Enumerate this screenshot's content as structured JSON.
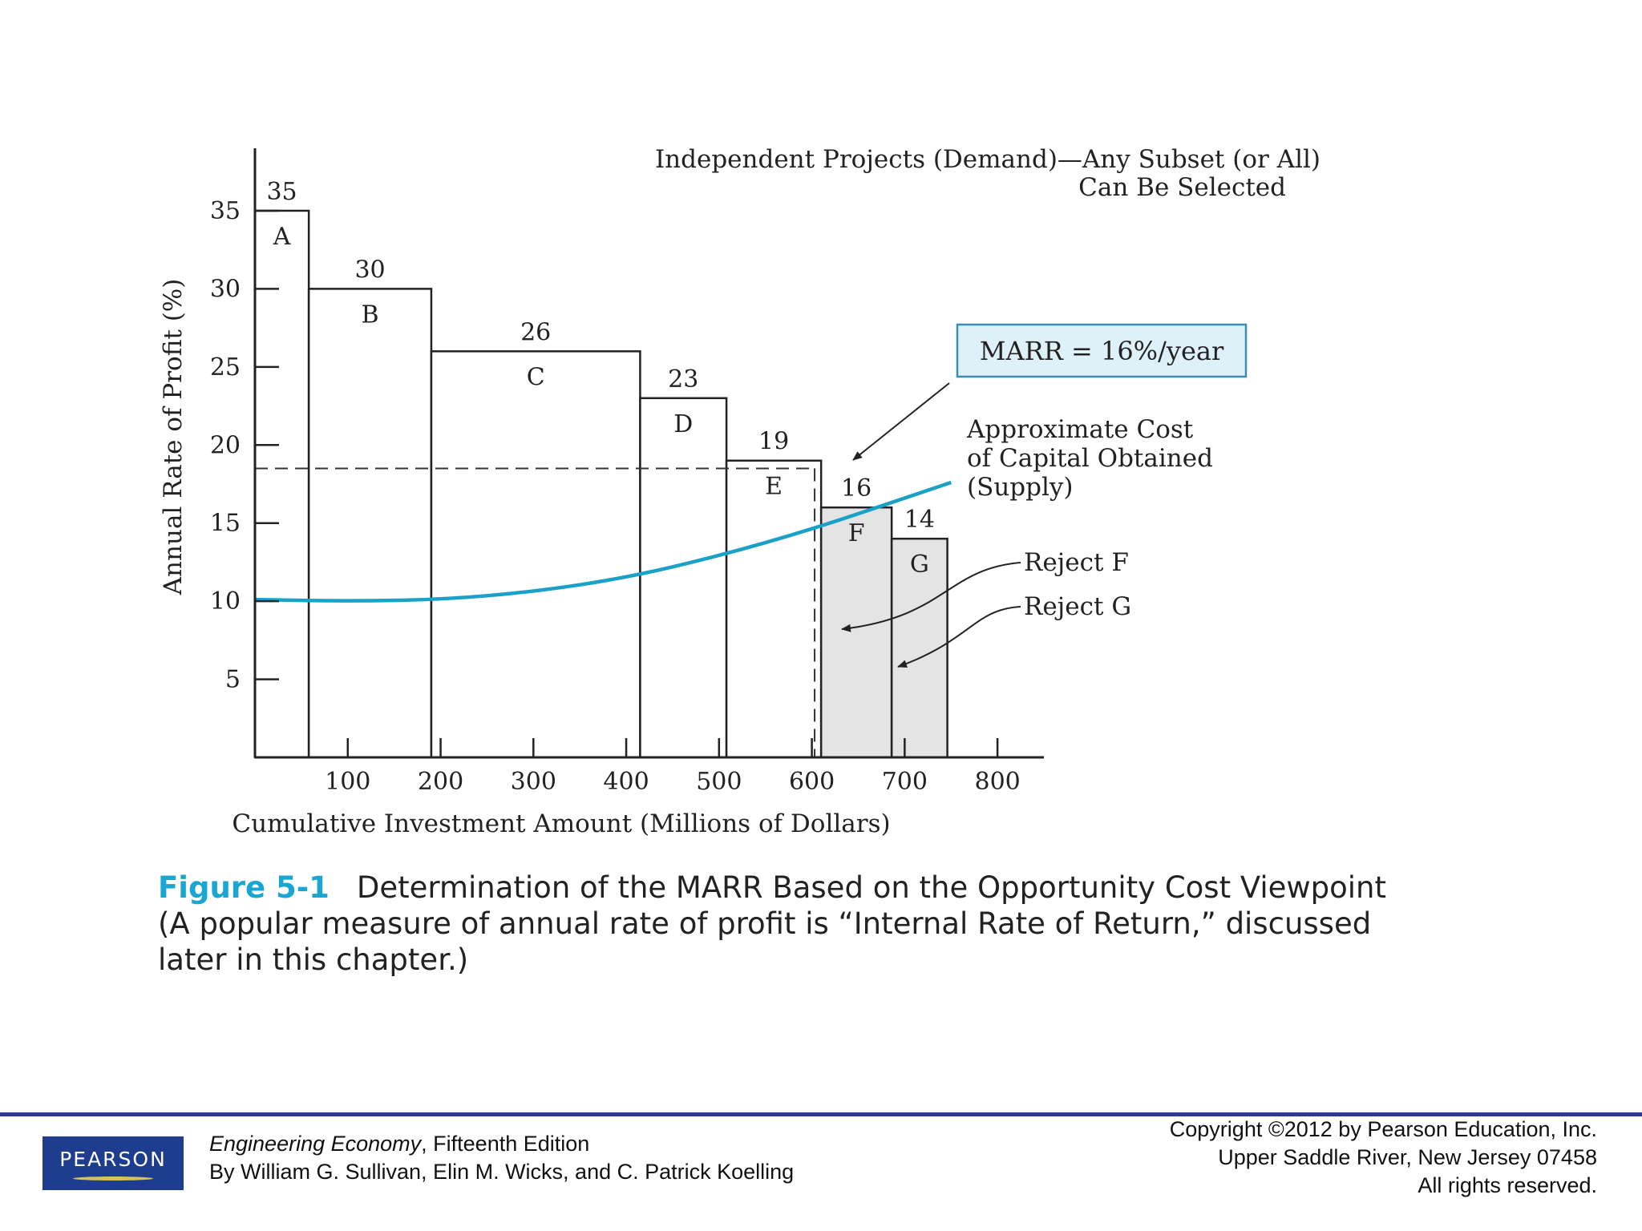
{
  "chart_data": {
    "type": "bar",
    "title": "Independent Projects (Demand)—Any Subset (or All) Can Be Selected",
    "title_lines": [
      "Independent Projects (Demand)—Any Subset (or All)",
      "Can Be Selected"
    ],
    "xlabel": "Cumulative Investment Amount (Millions of Dollars)",
    "ylabel": "Annual Rate of Profit (%)",
    "xlim": [
      0,
      850
    ],
    "ylim": [
      0,
      39
    ],
    "x_ticks": [
      100,
      200,
      300,
      400,
      500,
      600,
      700,
      800
    ],
    "y_ticks": [
      5,
      10,
      15,
      20,
      25,
      30,
      35
    ],
    "grid": false,
    "projects": [
      {
        "label": "A",
        "x_start": 0,
        "x_end": 58,
        "rate": 35,
        "rate_label": "35",
        "rejected": false
      },
      {
        "label": "B",
        "x_start": 58,
        "x_end": 190,
        "rate": 30,
        "rate_label": "30",
        "rejected": false
      },
      {
        "label": "C",
        "x_start": 190,
        "x_end": 415,
        "rate": 26,
        "rate_label": "26",
        "rejected": false
      },
      {
        "label": "D",
        "x_start": 415,
        "x_end": 508,
        "rate": 23,
        "rate_label": "23",
        "rejected": false
      },
      {
        "label": "E",
        "x_start": 508,
        "x_end": 610,
        "rate": 19,
        "rate_label": "19",
        "rejected": false
      },
      {
        "label": "F",
        "x_start": 610,
        "x_end": 686,
        "rate": 16,
        "rate_label": "16",
        "rejected": true
      },
      {
        "label": "G",
        "x_start": 686,
        "x_end": 746,
        "rate": 14,
        "rate_label": "14",
        "rejected": true
      }
    ],
    "supply_curve": {
      "name": "Approximate Cost of Capital Obtained (Supply)",
      "name_lines": [
        "Approximate Cost",
        "of Capital Obtained",
        "(Supply)"
      ],
      "color": "#1aa1c8",
      "x": [
        0,
        100,
        200,
        300,
        400,
        500,
        600,
        700,
        750
      ],
      "y": [
        10.1,
        10.0,
        10.1,
        10.6,
        11.5,
        12.9,
        14.6,
        16.6,
        17.6
      ]
    },
    "marr": {
      "label": "MARR = 16%/year",
      "value": 16
    },
    "threshold": {
      "x": 603,
      "y": 18.5
    },
    "annotations": [
      "Reject F",
      "Reject G"
    ],
    "colors": {
      "rejected_fill": "#e4e4e4",
      "axis": "#222222",
      "marr_box_fill": "#dff1f8",
      "marr_box_stroke": "#3a8fb0"
    }
  },
  "caption": {
    "figure_label": "Figure 5-1",
    "line1": "Determination of the MARR Based on the Opportunity Cost Viewpoint",
    "line2": "(A popular measure of annual rate of profit is “Internal Rate of Return,” discussed",
    "line3": "later in this chapter.)"
  },
  "footer": {
    "publisher_logo": "PEARSON",
    "book_title": "Engineering Economy",
    "edition": ", Fifteenth Edition",
    "authors": "By William G. Sullivan, Elin M. Wicks, and C. Patrick Koelling",
    "copyright_lines": [
      "Copyright ©2012 by Pearson Education, Inc.",
      "Upper Saddle River, New Jersey 07458",
      "All rights reserved."
    ]
  }
}
